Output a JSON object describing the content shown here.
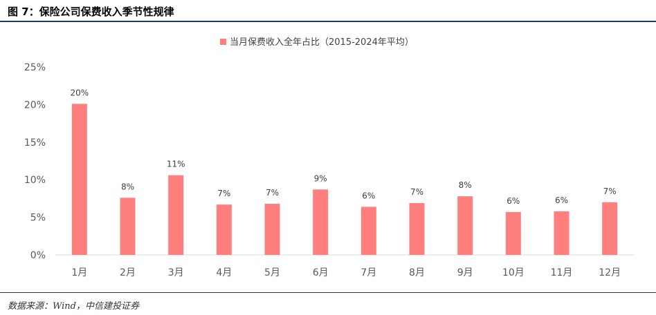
{
  "figure_title": "图 7：保险公司保费收入季节性规律",
  "source": "数据来源：Wind，中信建投证券",
  "chart_data": {
    "type": "bar",
    "legend": "当月保费收入全年占比（2015-2024年平均）",
    "legend_position": "top-center",
    "color": "#ff7f7f",
    "categories": [
      "1月",
      "2月",
      "3月",
      "4月",
      "5月",
      "6月",
      "7月",
      "8月",
      "9月",
      "10月",
      "11月",
      "12月"
    ],
    "values": [
      20.1,
      7.6,
      10.6,
      6.7,
      6.8,
      8.7,
      6.4,
      6.9,
      7.8,
      5.7,
      5.8,
      7.0
    ],
    "data_labels": [
      "20%",
      "8%",
      "11%",
      "7%",
      "7%",
      "9%",
      "6%",
      "7%",
      "8%",
      "6%",
      "6%",
      "7%"
    ],
    "ylim": [
      0,
      25
    ],
    "yticks": [
      "0%",
      "5%",
      "10%",
      "15%",
      "20%",
      "25%"
    ],
    "xlabel": "",
    "ylabel": "",
    "grid": false
  }
}
